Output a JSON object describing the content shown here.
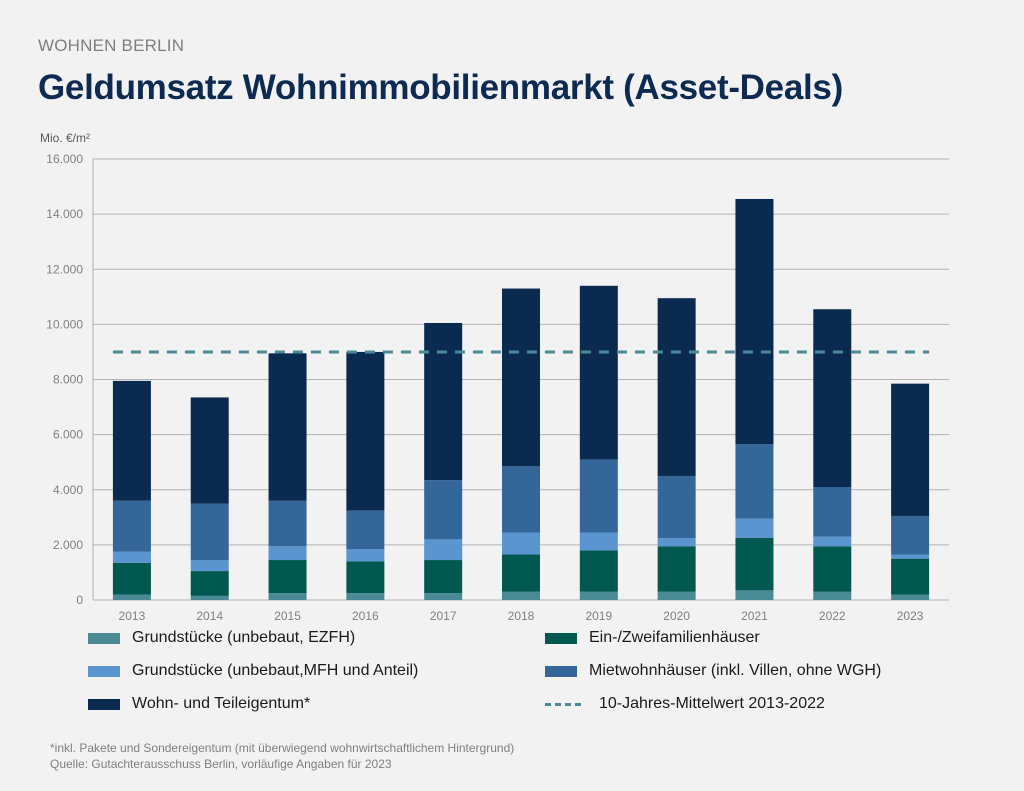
{
  "header": {
    "kicker": "WOHNEN BERLIN",
    "title": "Geldumsatz Wohnimmobilienmarkt (Asset-Deals)"
  },
  "chart_data": {
    "type": "bar",
    "stacked": true,
    "ylabel": "Mio. €/m²",
    "ylim": [
      0,
      16000
    ],
    "yticks": [
      0,
      2000,
      4000,
      6000,
      8000,
      10000,
      12000,
      14000,
      16000
    ],
    "ytick_labels": [
      "0",
      "2.000",
      "4.000",
      "6.000",
      "8.000",
      "10.000",
      "12.000",
      "14.000",
      "16.000"
    ],
    "grid": true,
    "categories": [
      "2013",
      "2014",
      "2015",
      "2016",
      "2017",
      "2018",
      "2019",
      "2020",
      "2021",
      "2022",
      "2023"
    ],
    "series": [
      {
        "name": "Grundstücke (unbebaut, EZFH)",
        "color": "#4a8a94",
        "values": [
          200,
          150,
          250,
          250,
          250,
          300,
          300,
          300,
          350,
          300,
          200
        ]
      },
      {
        "name": "Ein-/Zweifamilienhäuser",
        "color": "#00584f",
        "values": [
          1150,
          900,
          1200,
          1150,
          1200,
          1350,
          1500,
          1650,
          1900,
          1650,
          1300
        ]
      },
      {
        "name": "Grundstücke (unbebaut,MFH und Anteil)",
        "color": "#5b95cf",
        "values": [
          400,
          400,
          500,
          450,
          750,
          800,
          650,
          300,
          700,
          350,
          150
        ]
      },
      {
        "name": "Mietwohnhäuser (inkl. Villen, ohne WGH)",
        "color": "#356699",
        "values": [
          1850,
          2050,
          1650,
          1400,
          2150,
          2400,
          2650,
          2250,
          2700,
          1800,
          1400
        ]
      },
      {
        "name": "Wohn- und Teileigentum*",
        "color": "#0b2a50",
        "values": [
          4350,
          3850,
          5350,
          5750,
          5700,
          6450,
          6300,
          6450,
          8900,
          6450,
          4800
        ]
      }
    ],
    "reference_line": {
      "name": "10-Jahres-Mittelwert 2013-2022",
      "value": 9000,
      "color": "#4a8a94"
    },
    "legend_position": "bottom"
  },
  "footnotes": {
    "note": "*inkl. Pakete und Sondereigentum (mit überwiegend wohnwirtschaftlichem Hintergrund)",
    "source": "Quelle: Gutachterausschuss Berlin, vorläufige Angaben für 2023"
  }
}
